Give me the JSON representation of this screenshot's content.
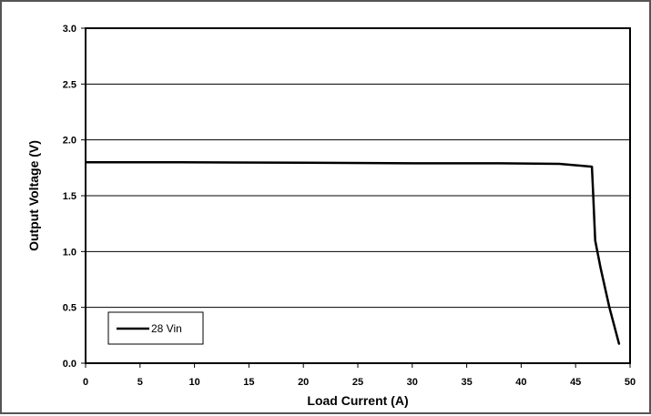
{
  "chart_data": {
    "type": "line",
    "title": "",
    "xlabel": "Load Current (A)",
    "ylabel": "Output Voltage (V)",
    "xlim": [
      0,
      50
    ],
    "ylim": [
      0,
      3.0
    ],
    "x_ticks": [
      "0",
      "5",
      "10",
      "15",
      "20",
      "25",
      "30",
      "35",
      "40",
      "45",
      "50"
    ],
    "y_ticks": [
      "0.0",
      "0.5",
      "1.0",
      "1.5",
      "2.0",
      "2.5",
      "3.0"
    ],
    "grid": "horizontal",
    "legend_position": "bottom-left",
    "series": [
      {
        "name": "28 Vin",
        "color": "#000000",
        "points": [
          [
            0,
            1.8
          ],
          [
            8.7,
            1.8
          ],
          [
            20,
            1.795
          ],
          [
            30,
            1.79
          ],
          [
            38,
            1.79
          ],
          [
            43.5,
            1.785
          ],
          [
            46.5,
            1.76
          ],
          [
            46.6,
            1.55
          ],
          [
            46.8,
            1.1
          ],
          [
            47.3,
            0.85
          ],
          [
            48.1,
            0.5
          ],
          [
            49.0,
            0.17
          ]
        ]
      }
    ]
  }
}
